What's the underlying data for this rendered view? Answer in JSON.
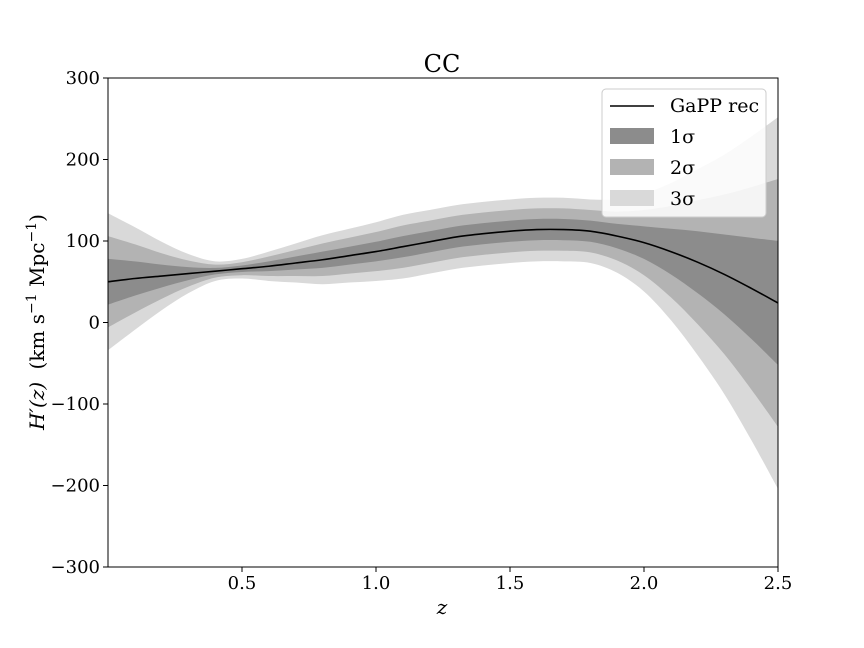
{
  "chart_data": {
    "type": "line",
    "title": "CC",
    "xlabel": "z",
    "ylabel_parts": {
      "var": "H′(z)",
      "units_open": "(km s",
      "exp1": "−1",
      "units_mid": " Mpc",
      "exp2": "−1",
      "units_close": ")"
    },
    "xlim": [
      0.0,
      2.5
    ],
    "ylim": [
      -300,
      300
    ],
    "xticks": [
      0.5,
      1.0,
      1.5,
      2.0,
      2.5
    ],
    "xtick_labels": [
      "0.5",
      "1.0",
      "1.5",
      "2.0",
      "2.5"
    ],
    "yticks": [
      -300,
      -200,
      -100,
      0,
      100,
      200,
      300
    ],
    "ytick_labels": [
      "−300",
      "−200",
      "−100",
      "0",
      "100",
      "200",
      "300"
    ],
    "legend_position": "upper-right",
    "legend": [
      {
        "label": "GaPP rec",
        "kind": "line",
        "color": "#000000"
      },
      {
        "label": "1σ",
        "kind": "band",
        "color": "#8c8c8c"
      },
      {
        "label": "2σ",
        "kind": "band",
        "color": "#b3b3b3"
      },
      {
        "label": "3σ",
        "kind": "band",
        "color": "#d9d9d9"
      }
    ],
    "x": [
      0.0,
      0.1,
      0.2,
      0.3,
      0.4,
      0.5,
      0.6,
      0.7,
      0.8,
      0.9,
      1.0,
      1.1,
      1.2,
      1.3,
      1.4,
      1.5,
      1.6,
      1.7,
      1.8,
      1.9,
      2.0,
      2.1,
      2.2,
      2.3,
      2.4,
      2.5
    ],
    "mean": [
      50,
      54,
      57,
      60,
      63,
      66,
      69,
      73,
      77,
      82,
      87,
      93,
      99,
      105,
      109,
      112,
      114,
      114,
      112,
      106,
      98,
      87,
      74,
      59,
      42,
      24
    ],
    "sigma1": [
      28,
      21,
      14,
      8,
      4,
      4,
      6,
      8,
      10,
      11,
      12,
      13,
      13,
      13,
      13,
      13,
      13,
      13,
      13,
      15,
      20,
      28,
      38,
      49,
      62,
      76
    ],
    "colors": {
      "band1": "#8c8c8c",
      "band2": "#b3b3b3",
      "band3": "#d9d9d9",
      "line": "#000000"
    }
  }
}
